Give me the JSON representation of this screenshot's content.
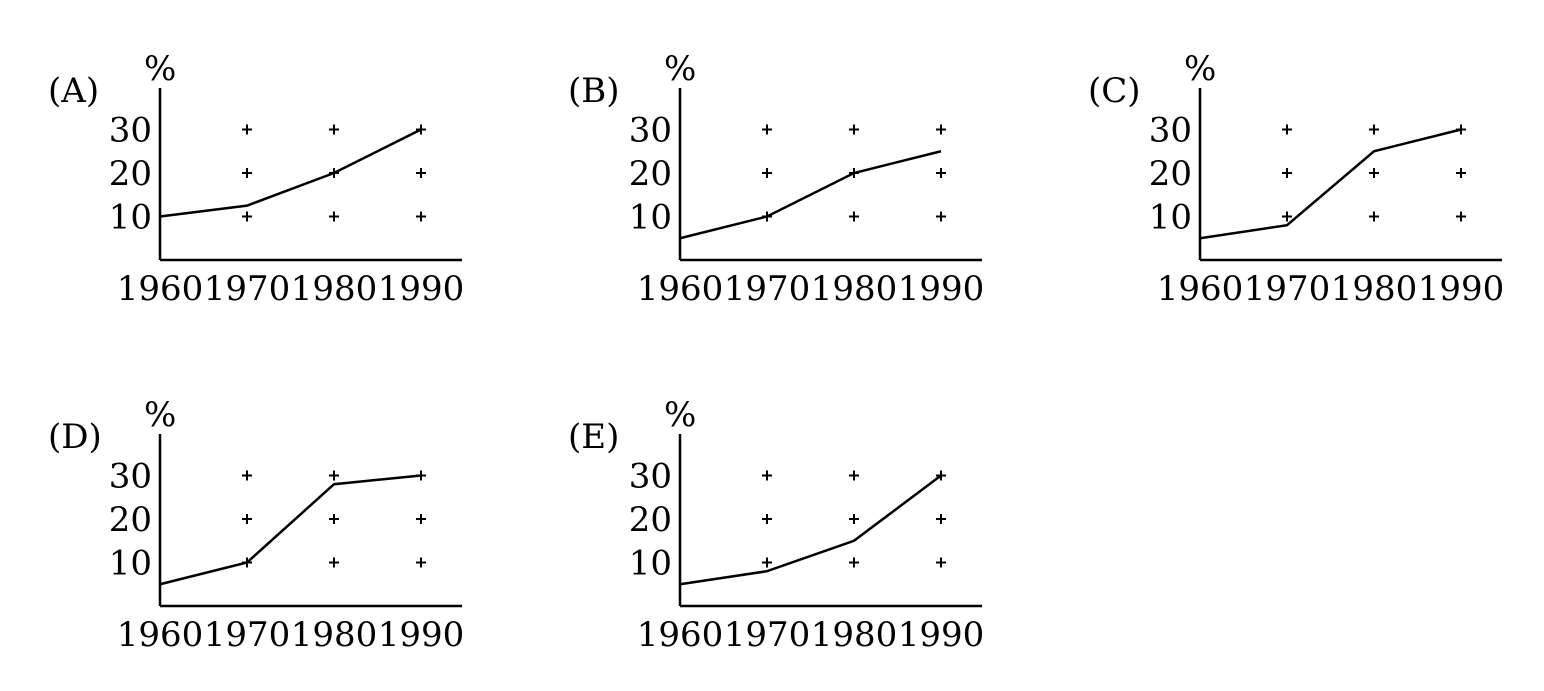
{
  "chart_data": [
    {
      "type": "line",
      "panel_label": "(A)",
      "ylabel": "%",
      "x": [
        "1960",
        "1970",
        "1980",
        "1990"
      ],
      "y_ticks": [
        "10",
        "20",
        "30"
      ],
      "ylim": [
        0,
        40
      ],
      "grid": "plus markers",
      "series": [
        {
          "values": [
            10,
            12.5,
            20,
            30
          ]
        }
      ]
    },
    {
      "type": "line",
      "panel_label": "(B)",
      "ylabel": "%",
      "x": [
        "1960",
        "1970",
        "1980",
        "1990"
      ],
      "y_ticks": [
        "10",
        "20",
        "30"
      ],
      "ylim": [
        0,
        40
      ],
      "grid": "plus markers",
      "series": [
        {
          "values": [
            5,
            10,
            20,
            25
          ]
        }
      ]
    },
    {
      "type": "line",
      "panel_label": "(C)",
      "ylabel": "%",
      "x": [
        "1960",
        "1970",
        "1980",
        "1990"
      ],
      "y_ticks": [
        "10",
        "20",
        "30"
      ],
      "ylim": [
        0,
        40
      ],
      "grid": "plus markers",
      "series": [
        {
          "values": [
            5,
            8,
            25,
            30
          ]
        }
      ]
    },
    {
      "type": "line",
      "panel_label": "(D)",
      "ylabel": "%",
      "x": [
        "1960",
        "1970",
        "1980",
        "1990"
      ],
      "y_ticks": [
        "10",
        "20",
        "30"
      ],
      "ylim": [
        0,
        40
      ],
      "grid": "plus markers",
      "series": [
        {
          "values": [
            5,
            10,
            28,
            30
          ]
        }
      ]
    },
    {
      "type": "line",
      "panel_label": "(E)",
      "ylabel": "%",
      "x": [
        "1960",
        "1970",
        "1980",
        "1990"
      ],
      "y_ticks": [
        "10",
        "20",
        "30"
      ],
      "ylim": [
        0,
        40
      ],
      "grid": "plus markers",
      "series": [
        {
          "values": [
            5,
            8,
            15,
            30
          ]
        }
      ]
    }
  ]
}
